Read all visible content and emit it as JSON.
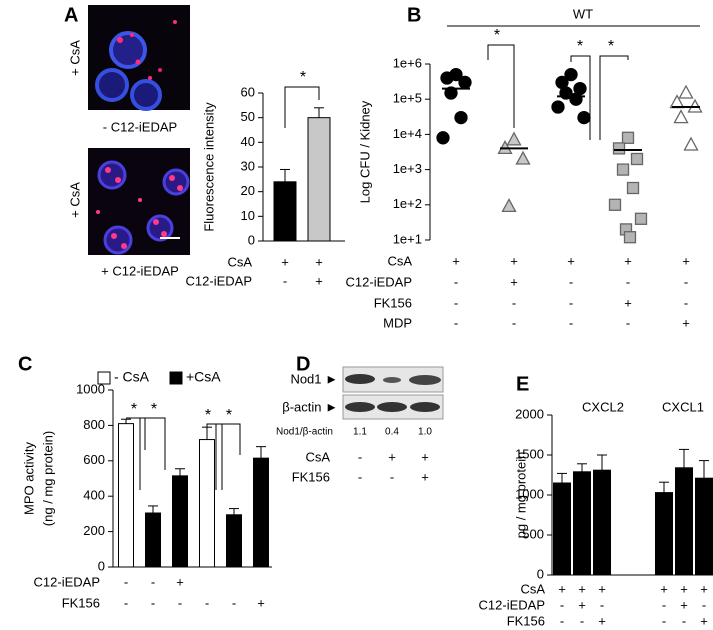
{
  "chart_data": [
    {
      "type": "bar",
      "label": "A",
      "image_labels": [
        "+ CsA",
        "- C12-iEDAP",
        "+ CsA",
        "+ C12-iEDAP"
      ],
      "ylabel": "Fluorescence intensity",
      "ylim": [
        0,
        60
      ],
      "yticks": [
        0,
        10,
        20,
        30,
        40,
        50,
        60
      ],
      "series": [
        {
          "colors": [
            "#000000",
            "#c8c8c8"
          ],
          "values": [
            24,
            50
          ],
          "errors": [
            5,
            4
          ]
        }
      ],
      "treatments": [
        {
          "name": "CsA",
          "signs": [
            "+",
            "+"
          ]
        },
        {
          "name": "C12-iEDAP",
          "signs": [
            "-",
            "+"
          ]
        }
      ],
      "annotations": [
        "*"
      ]
    },
    {
      "type": "scatter",
      "label": "B",
      "header": "WT",
      "ylabel": "Log CFU / Kidney",
      "log_scale": true,
      "ylim": [
        10,
        1000000
      ],
      "yticks": [
        {
          "value": 10,
          "label": "1e+1"
        },
        {
          "value": 100,
          "label": "1e+2"
        },
        {
          "value": 1000,
          "label": "1e+3"
        },
        {
          "value": 10000,
          "label": "1e+4"
        },
        {
          "value": 100000,
          "label": "1e+5"
        },
        {
          "value": 1000000,
          "label": "1e+6"
        }
      ],
      "groups": [
        {
          "marker": "circle",
          "color": "#000000",
          "values": [
            500000,
            400000,
            300000,
            150000,
            30000,
            8000
          ],
          "mean": 200000
        },
        {
          "marker": "triangle",
          "color": "#c8c8c8",
          "values": [
            7000,
            4000,
            2000,
            90
          ],
          "mean": 4000
        },
        {
          "marker": "circle",
          "color": "#000000",
          "values": [
            500000,
            300000,
            200000,
            150000,
            100000,
            60000,
            30000
          ],
          "mean": 120000
        },
        {
          "marker": "square",
          "color": "#b4b4b4",
          "values": [
            8000,
            4000,
            2000,
            1000,
            300,
            100,
            40,
            20,
            12
          ],
          "mean": 3600
        },
        {
          "marker": "triangle",
          "color": "#ffffff",
          "values": [
            150000,
            80000,
            60000,
            30000,
            5000
          ],
          "mean": 60000
        }
      ],
      "treatments": [
        {
          "name": "CsA",
          "signs": [
            "+",
            "+",
            "+",
            "+",
            "+"
          ]
        },
        {
          "name": "C12-iEDAP",
          "signs": [
            "-",
            "+",
            "-",
            "-",
            "-"
          ]
        },
        {
          "name": "FK156",
          "signs": [
            "-",
            "-",
            "-",
            "+",
            "-"
          ]
        },
        {
          "name": "MDP",
          "signs": [
            "-",
            "-",
            "-",
            "-",
            "+"
          ]
        }
      ],
      "annotations": [
        "*",
        "*",
        "*"
      ]
    },
    {
      "type": "bar",
      "label": "C",
      "ylabel": [
        "MPO activity",
        "(ng / mg protein)"
      ],
      "ylim": [
        0,
        1000
      ],
      "yticks": [
        0,
        200,
        400,
        600,
        800,
        1000
      ],
      "series": [
        {
          "name": "- CsA",
          "color": "#ffffff",
          "values": [
            810,
            null,
            null,
            720,
            null,
            null
          ],
          "errors": [
            25,
            null,
            null,
            70,
            null,
            null
          ]
        },
        {
          "name": "+CsA",
          "color": "#000000",
          "values": [
            null,
            305,
            515,
            null,
            295,
            615
          ],
          "errors": [
            null,
            40,
            40,
            null,
            35,
            65
          ]
        }
      ],
      "treatments": [
        {
          "name": "C12-iEDAP",
          "signs": [
            "-",
            "-",
            "+",
            null,
            null,
            null
          ]
        },
        {
          "name": "FK156",
          "signs": [
            "-",
            "-",
            "-",
            "-",
            "-",
            "+"
          ]
        }
      ],
      "annotations": [
        "*",
        "*",
        "*",
        "*"
      ]
    },
    {
      "type": "bar",
      "label": "E",
      "ylabel": "pg / mg protein",
      "ylim": [
        0,
        2000
      ],
      "yticks": [
        0,
        500,
        1000,
        1500,
        2000
      ],
      "group_labels": [
        "CXCL2",
        "CXCL1"
      ],
      "series": [
        {
          "color": "#000000",
          "values": [
            1150,
            1290,
            1310,
            1030,
            1340,
            1210
          ],
          "errors": [
            120,
            100,
            190,
            130,
            230,
            220
          ]
        }
      ],
      "treatments": [
        {
          "name": "CsA",
          "signs": [
            "+",
            "+",
            "+",
            "+",
            "+",
            "+"
          ]
        },
        {
          "name": "C12-iEDAP",
          "signs": [
            "-",
            "+",
            "-",
            "-",
            "+",
            "-"
          ]
        },
        {
          "name": "FK156",
          "signs": [
            "-",
            "-",
            "+",
            "-",
            "-",
            "+"
          ]
        }
      ]
    }
  ],
  "blot": {
    "label": "D",
    "rows": [
      "Nod1 ►",
      "β-actin ►"
    ],
    "ratio_label": "Nod1/β-actin",
    "ratios": [
      "1.1",
      "0.4",
      "1.0"
    ],
    "treatments": [
      {
        "name": "CsA",
        "signs": [
          "-",
          "+",
          "+"
        ]
      },
      {
        "name": "FK156",
        "signs": [
          "-",
          "-",
          "+"
        ]
      }
    ]
  }
}
